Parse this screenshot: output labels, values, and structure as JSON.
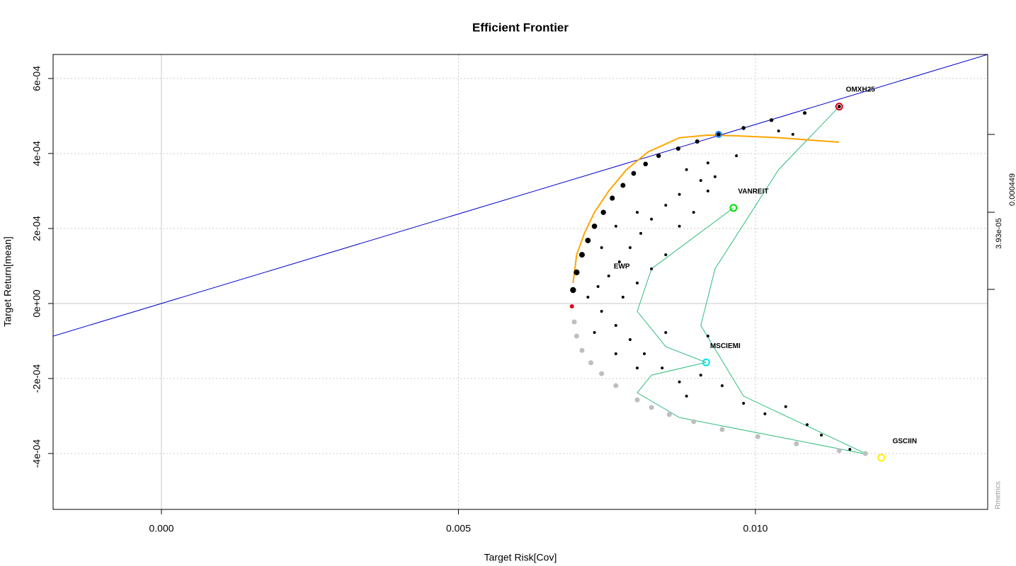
{
  "chart_data": {
    "type": "scatter",
    "title": "Efficient Frontier",
    "x_label": "Target Risk[Cov]",
    "y_label": "Target Return[mean]",
    "right_axis_labels": [
      "3.93e-05",
      "0.000449"
    ],
    "watermark": "Rmetrics",
    "xlim": [
      -0.001824,
      0.01391
    ],
    "ylim": [
      -0.000549,
      0.000664
    ],
    "xticks": [
      {
        "value": 0,
        "label": "0.000"
      },
      {
        "value": 0.005,
        "label": "0.005"
      },
      {
        "value": 0.01,
        "label": "0.010"
      }
    ],
    "yticks": [
      {
        "value": -0.0004,
        "label": "-4e-04"
      },
      {
        "value": -0.0002,
        "label": "-2e-04"
      },
      {
        "value": 0,
        "label": "0e+00"
      },
      {
        "value": 0.0002,
        "label": "2e-04"
      },
      {
        "value": 0.0004,
        "label": "4e-04"
      },
      {
        "value": 0.0006,
        "label": "6e-04"
      }
    ],
    "grid": true,
    "tangent_line": {
      "color": "#0000cc",
      "x": [
        -0.001824,
        0.01391
      ],
      "y": [
        -8.7e-05,
        0.000664
      ]
    },
    "sharpe_curve": {
      "color": "#ffa500",
      "x": [
        0.00693,
        0.00699,
        0.00712,
        0.00729,
        0.00753,
        0.00783,
        0.00819,
        0.00872,
        0.0092,
        0.00968,
        0.01039,
        0.01141
      ],
      "y": [
        5.47e-05,
        0.00013,
        0.000187,
        0.000243,
        0.0003,
        0.000357,
        0.000404,
        0.000442,
        0.000449,
        0.000447,
        0.000442,
        0.00043
      ]
    },
    "pair_curves": {
      "color": "#2ebd7a",
      "curves": [
        {
          "x": [
            0.01141,
            0.01039,
            0.00932,
            0.00908,
            0.0098,
            0.01188
          ],
          "y": [
            0.000525,
            0.000357,
            9.25e-05,
            -5.85e-05,
            -0.000247,
            -0.000402
          ]
        },
        {
          "x": [
            0.00963,
            0.00825,
            0.00801,
            0.00849,
            0.00917
          ],
          "y": [
            0.000255,
            9.25e-05,
            -2.08e-05,
            -0.000115,
            -0.000157
          ]
        },
        {
          "x": [
            0.00917,
            0.00825,
            0.00801,
            0.00872,
            0.01188
          ],
          "y": [
            -0.000157,
            -0.000191,
            -0.000238,
            -0.000304,
            -0.000402
          ]
        }
      ]
    },
    "random_portfolios": {
      "color": "#000000",
      "x": [
        0.00718,
        0.00735,
        0.00753,
        0.00771,
        0.00789,
        0.00807,
        0.00825,
        0.00849,
        0.00872,
        0.00908,
        0.00932,
        0.00884,
        0.0092,
        0.00968,
        0.01039,
        0.01063,
        0.00741,
        0.00765,
        0.00789,
        0.00813,
        0.00843,
        0.00872,
        0.00908,
        0.00944,
        0.0098,
        0.01016,
        0.01051,
        0.01087,
        0.01111,
        0.01159,
        0.00777,
        0.00801,
        0.00825,
        0.00849,
        0.00872,
        0.00896,
        0.0092,
        0.00741,
        0.00765,
        0.00801,
        0.00729,
        0.00765,
        0.00801,
        0.00849,
        0.00884,
        0.0092
      ],
      "y": [
        1.7e-05,
        4.53e-05,
        7.36e-05,
        0.000111,
        0.000149,
        0.000187,
        0.000225,
        0.000262,
        0.000291,
        0.000328,
        0.000338,
        0.000357,
        0.000375,
        0.000394,
        0.00046,
        0.000451,
        -2.08e-05,
        -5.85e-05,
        -9.62e-05,
        -0.000134,
        -0.000172,
        -0.000209,
        -0.000191,
        -0.000219,
        -0.000266,
        -0.000294,
        -0.000275,
        -0.000323,
        -0.000351,
        -0.000389,
        1.7e-05,
        5.47e-05,
        9.25e-05,
        0.00013,
        0.000206,
        0.000243,
        0.0003,
        0.000149,
        0.000206,
        0.000243,
        -7.74e-05,
        -0.000134,
        -0.000172,
        -7.74e-05,
        -0.000247,
        -8.68e-05
      ]
    },
    "efficient_frontier": {
      "color": "#000000",
      "x": [
        0.00693,
        0.00699,
        0.00708,
        0.00718,
        0.00729,
        0.00744,
        0.00759,
        0.00777,
        0.00795,
        0.00815,
        0.00837,
        0.0087,
        0.00902,
        0.00938,
        0.0098,
        0.01027,
        0.01083,
        0.01141
      ],
      "y": [
        3.58e-05,
        8.3e-05,
        0.00013,
        0.000168,
        0.000206,
        0.000243,
        0.000281,
        0.000315,
        0.000347,
        0.000372,
        0.000394,
        0.000413,
        0.000432,
        0.000451,
        0.000468,
        0.000489,
        0.000508,
        0.000525
      ]
    },
    "inefficient_frontier": {
      "color": "#bebebe",
      "x": [
        0.00695,
        0.00699,
        0.00708,
        0.00723,
        0.00741,
        0.00765,
        0.00801,
        0.00825,
        0.00855,
        0.00896,
        0.00944,
        0.01004,
        0.01069,
        0.01141,
        0.01185
      ],
      "y": [
        -4.91e-05,
        -8.68e-05,
        -0.000125,
        -0.000158,
        -0.000187,
        -0.000219,
        -0.000257,
        -0.000277,
        -0.000296,
        -0.000315,
        -0.000336,
        -0.000355,
        -0.000374,
        -0.000392,
        -0.0004
      ]
    },
    "min_variance": {
      "color": "#e0001a",
      "x": 0.00691,
      "y": -7.5e-06
    },
    "tangency": {
      "color": "#1e90ff",
      "x": 0.00938,
      "y": 0.000451
    },
    "assets": [
      {
        "name": "OMXH25",
        "color": "#e0001a",
        "x": 0.01141,
        "y": 0.000525
      },
      {
        "name": "VANREIT",
        "color": "#00dd00",
        "x": 0.00963,
        "y": 0.000255
      },
      {
        "name": "MSCIEMI",
        "color": "#00e5ee",
        "x": 0.00917,
        "y": -0.000157
      },
      {
        "name": "GSCIIN",
        "color": "#ffee00",
        "x": 0.01212,
        "y": -0.000411
      }
    ],
    "annotations": [
      {
        "text": "EWP",
        "x": 0.00775,
        "y": 9.8e-05
      }
    ]
  }
}
